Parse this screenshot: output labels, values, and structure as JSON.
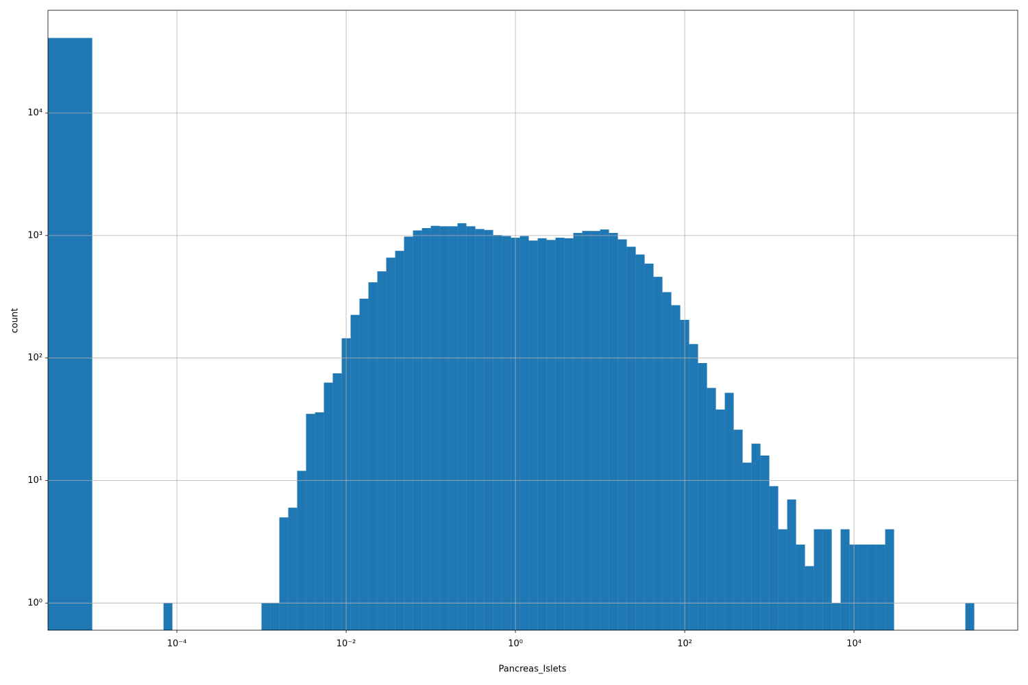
{
  "chart_data": {
    "type": "histogram",
    "xlabel": "Pancreas_Islets",
    "ylabel": "count",
    "color": "#1f77b4",
    "xlog": true,
    "ylog": true,
    "grid": true,
    "bins": [
      3e-06,
      1e-05,
      1.274e-05,
      1.624e-05,
      2.069e-05,
      2.637e-05,
      3.36e-05,
      4.281e-05,
      5.456e-05,
      6.952e-05,
      8.859e-05,
      0.0001129,
      0.0001438,
      0.0001833,
      0.0002336,
      0.0002976,
      0.0003793,
      0.0004833,
      0.0006158,
      0.0007848,
      0.001,
      0.001274,
      0.001624,
      0.002069,
      0.002637,
      0.00336,
      0.004281,
      0.005456,
      0.006952,
      0.008859,
      0.01129,
      0.01438,
      0.01833,
      0.02336,
      0.02976,
      0.03793,
      0.04833,
      0.06158,
      0.07848,
      0.1,
      0.1274,
      0.1624,
      0.2069,
      0.2637,
      0.336,
      0.4281,
      0.5456,
      0.6952,
      0.8859,
      1.129,
      1.438,
      1.833,
      2.336,
      2.976,
      3.793,
      4.833,
      6.158,
      7.848,
      10,
      12.74,
      16.24,
      20.69,
      26.37,
      33.6,
      42.81,
      54.56,
      69.52,
      88.59,
      112.9,
      143.8,
      183.3,
      233.6,
      297.6,
      379.3,
      483.3,
      615.8,
      784.8,
      1000,
      1274,
      1624,
      2069,
      2637,
      3360,
      4281,
      5456,
      6952,
      8859,
      11290,
      14380,
      18330,
      23360,
      29760,
      37930,
      48330,
      61580,
      78480,
      100000,
      127400,
      162400,
      206900,
      263700
    ],
    "values": [
      41000,
      0,
      0,
      0,
      0,
      0,
      0,
      0,
      0,
      1,
      0,
      0,
      0,
      0,
      0,
      0,
      0,
      0,
      0,
      0,
      1,
      1,
      5,
      6,
      12,
      35,
      36,
      63,
      75,
      145,
      225,
      305,
      415,
      510,
      660,
      750,
      980,
      1100,
      1150,
      1200,
      1190,
      1190,
      1260,
      1190,
      1130,
      1110,
      1010,
      990,
      960,
      990,
      910,
      950,
      920,
      960,
      950,
      1050,
      1090,
      1090,
      1120,
      1050,
      930,
      810,
      700,
      590,
      460,
      345,
      270,
      205,
      130,
      91,
      57,
      38,
      52,
      26,
      14,
      20,
      16,
      9,
      4,
      7,
      3,
      2,
      4,
      4,
      1,
      4,
      3,
      3,
      3,
      3,
      4,
      0,
      0,
      0,
      0,
      0,
      0,
      0,
      0,
      1
    ],
    "xlim": [
      3e-06,
      860000
    ],
    "ylim": [
      0.6,
      69000
    ],
    "xticks": [
      {
        "value": 0.0001,
        "label": "10⁻⁴"
      },
      {
        "value": 0.01,
        "label": "10⁻²"
      },
      {
        "value": 1,
        "label": "10⁰"
      },
      {
        "value": 100,
        "label": "10²"
      },
      {
        "value": 10000,
        "label": "10⁴"
      }
    ],
    "yticks": [
      {
        "value": 1,
        "label": "10⁰"
      },
      {
        "value": 10,
        "label": "10¹"
      },
      {
        "value": 100,
        "label": "10²"
      },
      {
        "value": 1000,
        "label": "10³"
      },
      {
        "value": 10000,
        "label": "10⁴"
      }
    ]
  }
}
